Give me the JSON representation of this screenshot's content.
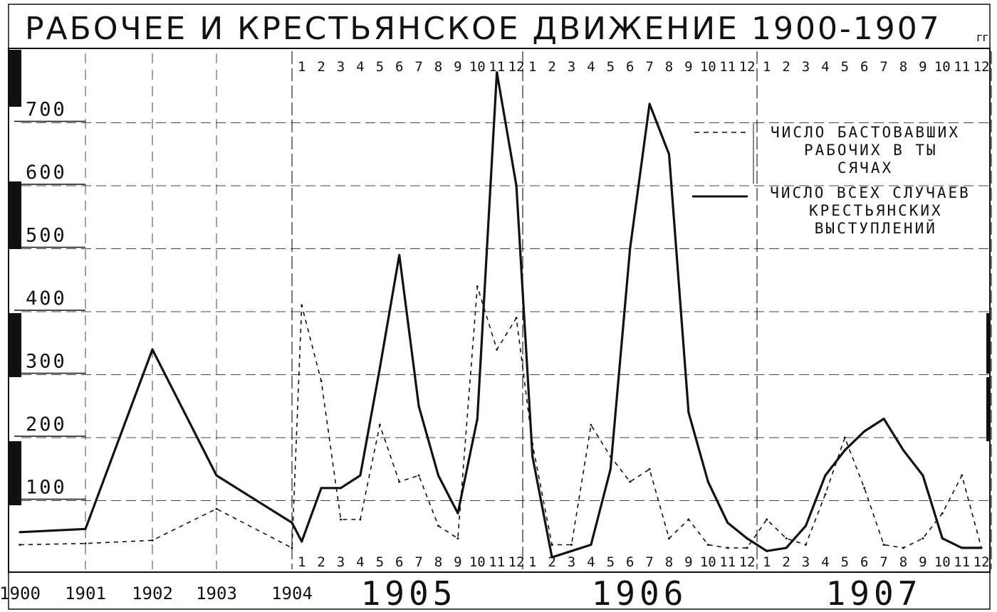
{
  "chart_data": {
    "type": "line",
    "title": "РАБОЧЕЕ И КРЕСТЬЯНСКОЕ ДВИЖЕНИЕ 1900-1907",
    "title_suffix": "гг",
    "y_ticks": [
      "100",
      "200",
      "300",
      "400",
      "500",
      "600",
      "700"
    ],
    "ylim": [
      0,
      780
    ],
    "grid": true,
    "legend_position": "top-right",
    "x_axis": {
      "annual_years": [
        "1900",
        "1901",
        "1902",
        "1903",
        "1904"
      ],
      "monthly_years": [
        "1905",
        "1906",
        "1907"
      ],
      "month_labels": [
        "1",
        "2",
        "3",
        "4",
        "5",
        "6",
        "7",
        "8",
        "9",
        "10",
        "11",
        "12"
      ]
    },
    "series": [
      {
        "name": "ЧИСЛО БАСТОВАВШИХ РАБОЧИХ В ТЫСЯЧАХ",
        "style": "dashed",
        "annual": [
          {
            "x": "1900",
            "y": 30
          },
          {
            "x": "1901",
            "y": 32
          },
          {
            "x": "1902",
            "y": 37
          },
          {
            "x": "1903",
            "y": 87
          },
          {
            "x": "1904",
            "y": 25
          }
        ],
        "monthly": {
          "1905": [
            410,
            290,
            70,
            70,
            220,
            130,
            140,
            60,
            40,
            440,
            340,
            390
          ],
          "1906": [
            190,
            30,
            30,
            220,
            170,
            130,
            150,
            40,
            70,
            30,
            25,
            25
          ],
          "1907": [
            70,
            40,
            30,
            110,
            200,
            120,
            30,
            25,
            40,
            80,
            140,
            25
          ]
        }
      },
      {
        "name": "ЧИСЛО ВСЕХ СЛУЧАЕВ КРЕСТЬЯНСКИХ ВЫСТУПЛЕНИЙ",
        "style": "solid",
        "annual": [
          {
            "x": "1900",
            "y": 50
          },
          {
            "x": "1901",
            "y": 55
          },
          {
            "x": "1902",
            "y": 340
          },
          {
            "x": "1903",
            "y": 140
          },
          {
            "x": "1904",
            "y": 65
          }
        ],
        "monthly": {
          "1905": [
            35,
            120,
            120,
            140,
            310,
            490,
            250,
            140,
            80,
            230,
            780,
            600
          ],
          "1906": [
            170,
            10,
            20,
            30,
            150,
            500,
            730,
            650,
            240,
            130,
            65,
            40
          ],
          "1907": [
            20,
            25,
            60,
            140,
            180,
            210,
            230,
            180,
            140,
            40,
            25,
            25
          ]
        }
      }
    ]
  }
}
